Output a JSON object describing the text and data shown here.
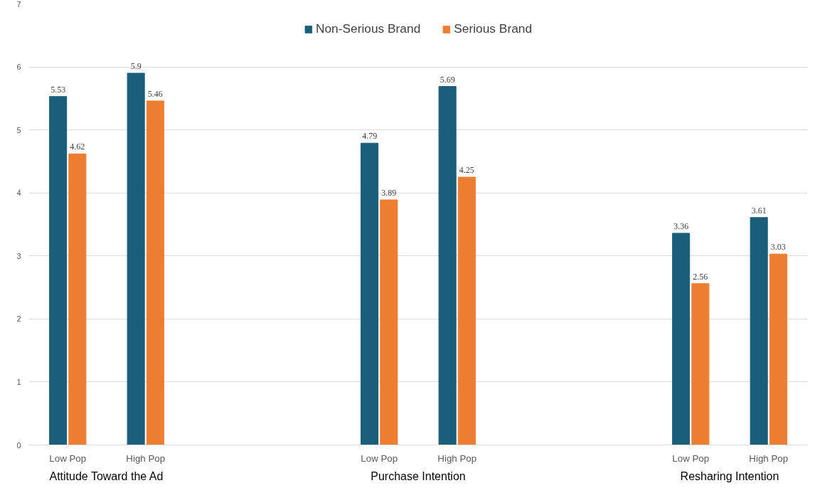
{
  "chart_data": {
    "type": "bar",
    "categories": [
      "Low Pop",
      "High Pop",
      null,
      null,
      "Low Pop",
      "High Pop",
      null,
      null,
      "Low Pop",
      "High Pop"
    ],
    "series": [
      {
        "name": "Non-Serious Brand",
        "color": "#1b5e7b",
        "values": [
          5.53,
          5.9,
          null,
          null,
          4.79,
          5.69,
          null,
          null,
          3.36,
          3.61
        ]
      },
      {
        "name": "Serious Brand",
        "color": "#ed7d31",
        "values": [
          4.62,
          5.46,
          null,
          null,
          3.89,
          4.25,
          null,
          null,
          2.56,
          3.03
        ]
      }
    ],
    "annotations": [
      "Attitude Toward the Ad",
      "Purchase Intention",
      "Resharing Intention"
    ],
    "ylim": [
      0,
      7
    ],
    "yticks": [
      0,
      1,
      2,
      3,
      4,
      5,
      6,
      7
    ],
    "grid": "y",
    "legend": "top",
    "data_labels": true
  }
}
